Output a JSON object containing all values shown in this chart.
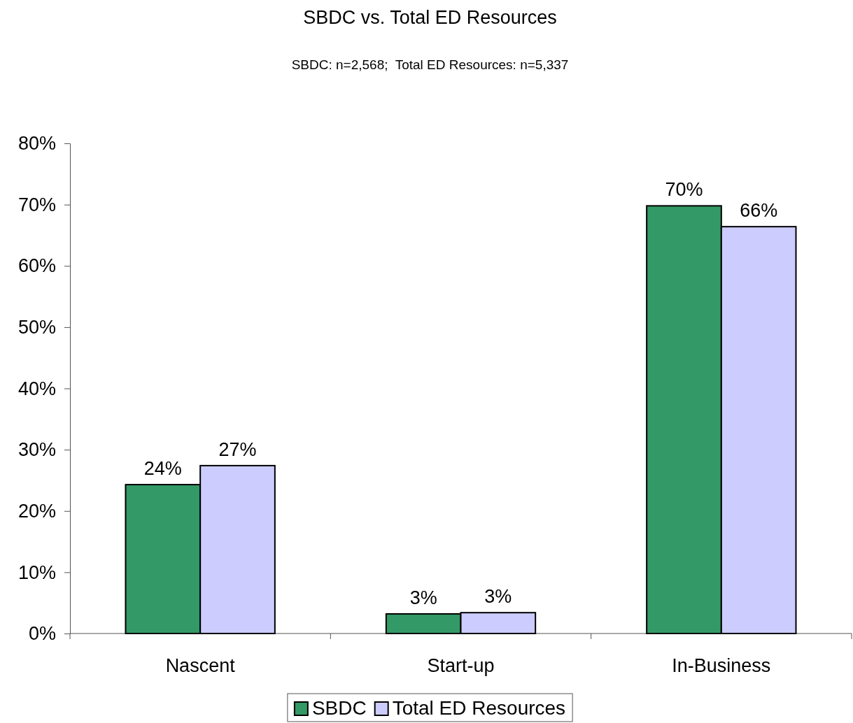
{
  "chart_data": {
    "type": "bar",
    "title": "SBDC vs. Total ED Resources",
    "subtitle": "SBDC: n=2,568;  Total ED Resources: n=5,337",
    "categories": [
      "Nascent",
      "Start-up",
      "In-Business"
    ],
    "series": [
      {
        "name": "SBDC",
        "color": "#339966",
        "values": [
          24.3,
          3.2,
          69.8
        ],
        "value_labels": [
          "24%",
          "3%",
          "70%"
        ]
      },
      {
        "name": "Total ED Resources",
        "color": "#ccccff",
        "values": [
          27.4,
          3.4,
          66.4
        ],
        "value_labels": [
          "27%",
          "3%",
          "66%"
        ]
      }
    ],
    "ylim": [
      0,
      80
    ],
    "yticks": [
      {
        "value": 0,
        "label": "0%"
      },
      {
        "value": 10,
        "label": "10%"
      },
      {
        "value": 20,
        "label": "20%"
      },
      {
        "value": 30,
        "label": "30%"
      },
      {
        "value": 40,
        "label": "40%"
      },
      {
        "value": 50,
        "label": "50%"
      },
      {
        "value": 60,
        "label": "60%"
      },
      {
        "value": 70,
        "label": "70%"
      },
      {
        "value": 80,
        "label": "80%"
      }
    ],
    "legend": "bottom"
  }
}
